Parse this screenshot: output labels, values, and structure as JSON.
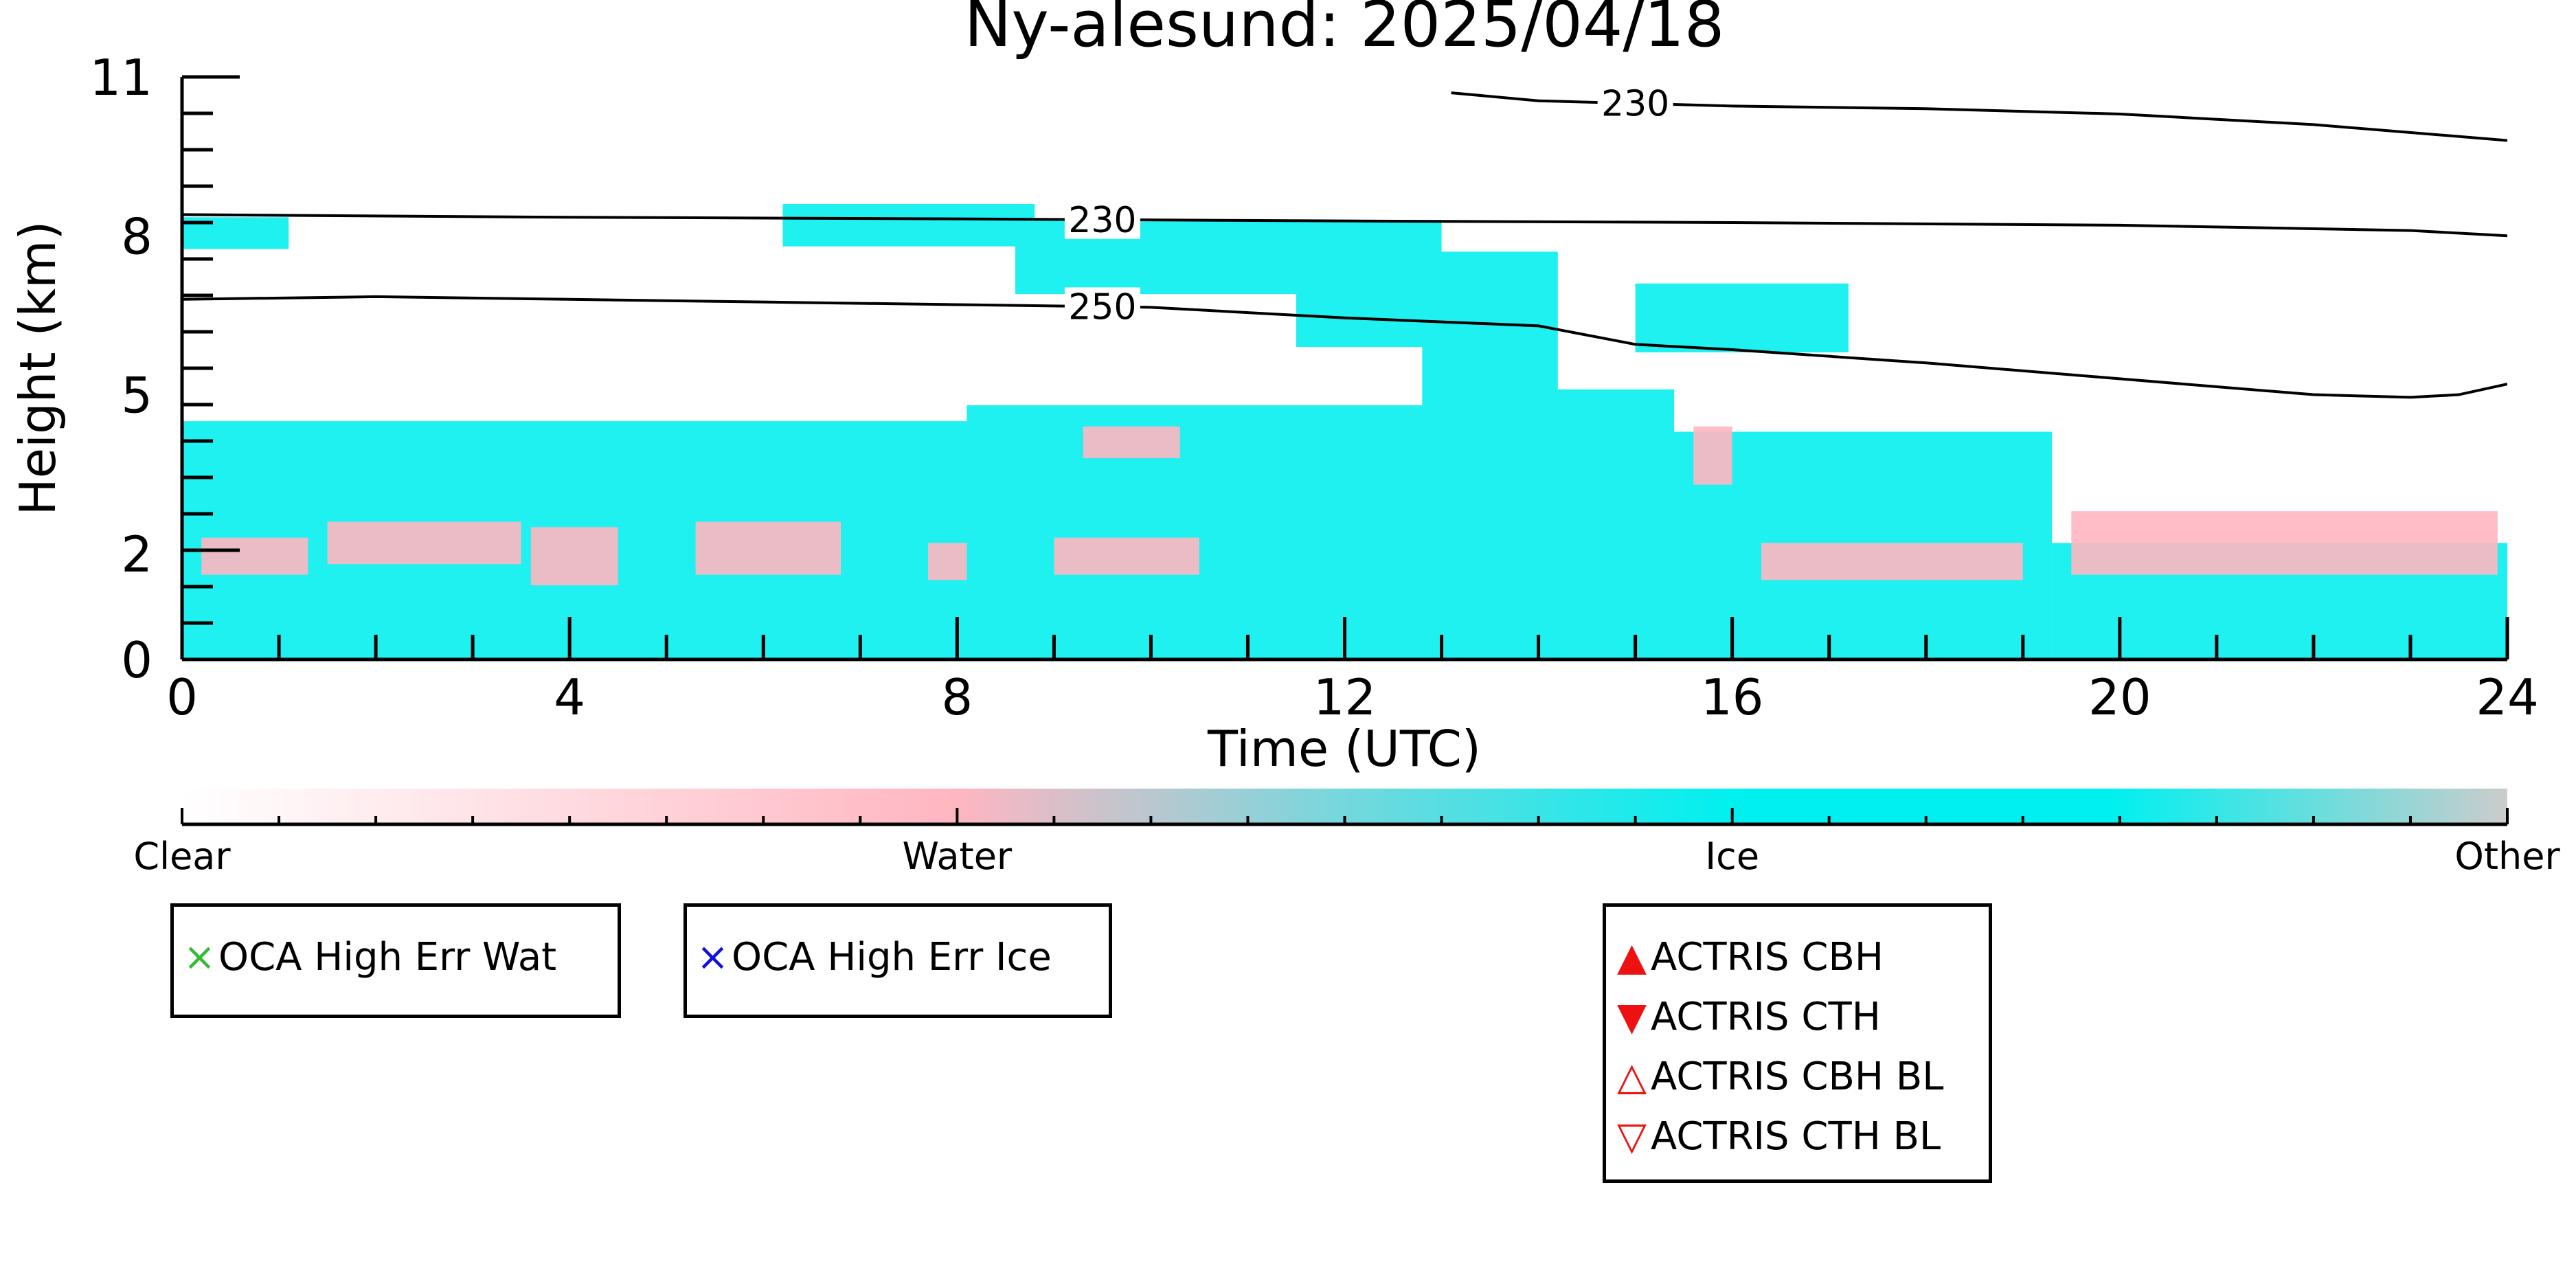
{
  "chart_data": {
    "type": "heatmap",
    "title": "Ny-alesund: 2025/04/18",
    "xlabel": "Time (UTC)",
    "ylabel": "Height (km)",
    "xlim": [
      0,
      24
    ],
    "ylim": [
      0,
      11
    ],
    "x_ticks": [
      "0",
      "4",
      "8",
      "12",
      "16",
      "20",
      "24"
    ],
    "y_ticks": [
      "0",
      "2",
      "5",
      "8",
      "11"
    ],
    "colorbar": {
      "labels": [
        "Clear",
        "Water",
        "Ice",
        "Other"
      ],
      "colors": [
        "#ffffff",
        "#ffb6c1",
        "#00f0f0",
        "#cccccc"
      ]
    },
    "categories": [
      {
        "name": "Ice",
        "color": "#1ff0f0"
      },
      {
        "name": "Water",
        "color": "#ffb6c1"
      }
    ],
    "ice_regions": [
      {
        "t0": 0.0,
        "t1": 1.1,
        "bottom": 7.75,
        "top": 8.35
      },
      {
        "t0": 6.2,
        "t1": 8.8,
        "bottom": 7.8,
        "top": 8.6
      },
      {
        "t0": 8.6,
        "t1": 13.0,
        "bottom": 6.9,
        "top": 8.3
      },
      {
        "t0": 11.5,
        "t1": 13.5,
        "bottom": 5.9,
        "top": 7.0
      },
      {
        "t0": 12.8,
        "t1": 14.2,
        "bottom": 4.5,
        "top": 7.7
      },
      {
        "t0": 15.0,
        "t1": 17.2,
        "bottom": 5.8,
        "top": 7.1
      },
      {
        "t0": 0.0,
        "t1": 8.1,
        "bottom": 0.0,
        "top": 4.5
      },
      {
        "t0": 8.1,
        "t1": 13.0,
        "bottom": 0.0,
        "top": 4.8
      },
      {
        "t0": 13.0,
        "t1": 15.4,
        "bottom": 0.0,
        "top": 5.1
      },
      {
        "t0": 15.4,
        "t1": 19.3,
        "bottom": 0.0,
        "top": 4.3
      },
      {
        "t0": 19.3,
        "t1": 24.0,
        "bottom": 0.0,
        "top": 2.2
      }
    ],
    "water_regions": [
      {
        "t0": 0.2,
        "t1": 1.3,
        "bottom": 1.6,
        "top": 2.3
      },
      {
        "t0": 1.5,
        "t1": 3.5,
        "bottom": 1.8,
        "top": 2.6
      },
      {
        "t0": 3.6,
        "t1": 4.5,
        "bottom": 1.4,
        "top": 2.5
      },
      {
        "t0": 5.3,
        "t1": 6.8,
        "bottom": 1.6,
        "top": 2.6
      },
      {
        "t0": 7.7,
        "t1": 8.1,
        "bottom": 1.5,
        "top": 2.2
      },
      {
        "t0": 9.3,
        "t1": 10.3,
        "bottom": 3.8,
        "top": 4.4
      },
      {
        "t0": 9.0,
        "t1": 10.5,
        "bottom": 1.6,
        "top": 2.3
      },
      {
        "t0": 15.6,
        "t1": 16.0,
        "bottom": 3.3,
        "top": 4.4
      },
      {
        "t0": 19.5,
        "t1": 23.9,
        "bottom": 1.6,
        "top": 2.8
      },
      {
        "t0": 16.3,
        "t1": 19.0,
        "bottom": 1.5,
        "top": 2.2
      }
    ],
    "temperature_contours": [
      {
        "label": "230",
        "label_at": 15.0,
        "points": [
          [
            13.1,
            10.7
          ],
          [
            14.0,
            10.55
          ],
          [
            16.0,
            10.45
          ],
          [
            18.0,
            10.4
          ],
          [
            20.0,
            10.3
          ],
          [
            22.0,
            10.1
          ],
          [
            24.0,
            9.8
          ]
        ]
      },
      {
        "label": "230",
        "label_at": 9.5,
        "points": [
          [
            0.0,
            8.4
          ],
          [
            4.0,
            8.35
          ],
          [
            8.0,
            8.32
          ],
          [
            12.0,
            8.28
          ],
          [
            16.0,
            8.25
          ],
          [
            20.0,
            8.2
          ],
          [
            23.0,
            8.1
          ],
          [
            24.0,
            8.0
          ]
        ]
      },
      {
        "label": "250",
        "label_at": 9.5,
        "points": [
          [
            0.0,
            6.8
          ],
          [
            2.0,
            6.85
          ],
          [
            4.0,
            6.8
          ],
          [
            6.0,
            6.75
          ],
          [
            8.0,
            6.7
          ],
          [
            10.0,
            6.65
          ],
          [
            12.0,
            6.45
          ],
          [
            14.0,
            6.3
          ],
          [
            15.0,
            5.95
          ],
          [
            16.0,
            5.85
          ],
          [
            18.0,
            5.6
          ],
          [
            20.0,
            5.3
          ],
          [
            22.0,
            5.0
          ],
          [
            23.0,
            4.95
          ],
          [
            23.5,
            5.0
          ],
          [
            24.0,
            5.2
          ]
        ]
      }
    ],
    "legend_groups": [
      [
        {
          "label": "OCA High Err Wat",
          "marker": "×",
          "color": "#33bb33"
        }
      ],
      [
        {
          "label": "OCA High Err Ice",
          "marker": "×",
          "color": "#1111dd"
        }
      ],
      [
        {
          "label": "ACTRIS CBH",
          "marker": "▲",
          "color": "#ee1111"
        },
        {
          "label": "ACTRIS CTH",
          "marker": "▼",
          "color": "#ee1111"
        },
        {
          "label": "ACTRIS CBH BL",
          "marker": "△",
          "color": "#ee1111"
        },
        {
          "label": "ACTRIS CTH BL",
          "marker": "▽",
          "color": "#ee1111"
        }
      ]
    ]
  }
}
